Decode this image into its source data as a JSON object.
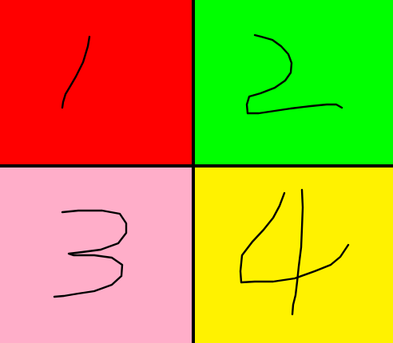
{
  "quadrants": [
    {
      "digit": "1",
      "color": "#ff0000"
    },
    {
      "digit": "2",
      "color": "#00ff00"
    },
    {
      "digit": "3",
      "color": "#ffaec9"
    },
    {
      "digit": "4",
      "color": "#fff200"
    }
  ],
  "divider_color": "#000000"
}
